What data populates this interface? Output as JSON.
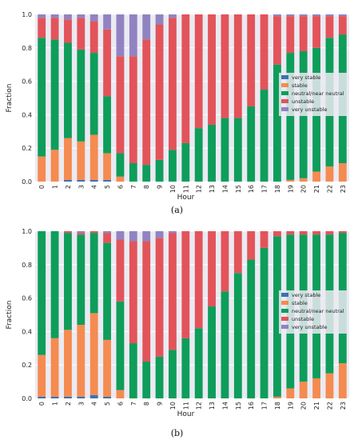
{
  "chart_data": [
    {
      "type": "bar",
      "stacked": true,
      "panel_label": "(a)",
      "title": "",
      "xlabel": "Hour",
      "ylabel": "Fraction",
      "ylim": [
        0,
        1
      ],
      "yticks": [
        "0.0",
        "0.2",
        "0.4",
        "0.6",
        "0.8",
        "1.0"
      ],
      "grid": true,
      "legend_position": "center-right",
      "categories": [
        "0",
        "1",
        "2",
        "3",
        "4",
        "5",
        "6",
        "7",
        "8",
        "9",
        "10",
        "11",
        "12",
        "13",
        "14",
        "15",
        "16",
        "17",
        "18",
        "19",
        "20",
        "21",
        "22",
        "23"
      ],
      "series": [
        {
          "name": "very stable",
          "color": "#3a72b0",
          "values": [
            0,
            0,
            0.01,
            0.01,
            0.01,
            0.01,
            0,
            0,
            0,
            0,
            0,
            0,
            0,
            0,
            0,
            0,
            0,
            0,
            0,
            0,
            0,
            0,
            0,
            0
          ]
        },
        {
          "name": "stable",
          "color": "#f58b50",
          "values": [
            0.15,
            0.19,
            0.25,
            0.23,
            0.27,
            0.16,
            0.03,
            0,
            0,
            0,
            0,
            0,
            0,
            0,
            0,
            0,
            0,
            0,
            0,
            0.01,
            0.02,
            0.06,
            0.09,
            0.11
          ]
        },
        {
          "name": "neutral/near neutral",
          "color": "#0e9d5a",
          "values": [
            0.71,
            0.66,
            0.57,
            0.55,
            0.49,
            0.34,
            0.14,
            0.11,
            0.1,
            0.13,
            0.19,
            0.23,
            0.32,
            0.34,
            0.38,
            0.38,
            0.45,
            0.55,
            0.7,
            0.76,
            0.76,
            0.74,
            0.77,
            0.77
          ]
        },
        {
          "name": "unstable",
          "color": "#e2545a",
          "values": [
            0.12,
            0.13,
            0.14,
            0.19,
            0.19,
            0.4,
            0.58,
            0.64,
            0.75,
            0.81,
            0.79,
            0.77,
            0.68,
            0.66,
            0.62,
            0.62,
            0.55,
            0.45,
            0.29,
            0.22,
            0.21,
            0.19,
            0.13,
            0.11
          ]
        },
        {
          "name": "very unstable",
          "color": "#9183c2",
          "values": [
            0.02,
            0.02,
            0.03,
            0.02,
            0.04,
            0.09,
            0.25,
            0.25,
            0.15,
            0.06,
            0.02,
            0,
            0,
            0,
            0,
            0,
            0,
            0,
            0.01,
            0.01,
            0.01,
            0.01,
            0.01,
            0.01
          ]
        }
      ]
    },
    {
      "type": "bar",
      "stacked": true,
      "panel_label": "(b)",
      "title": "",
      "xlabel": "Hour",
      "ylabel": "Fraction",
      "ylim": [
        0,
        1
      ],
      "yticks": [
        "0.0",
        "0.2",
        "0.4",
        "0.6",
        "0.8",
        "1.0"
      ],
      "grid": true,
      "legend_position": "center-right",
      "categories": [
        "0",
        "1",
        "2",
        "3",
        "4",
        "5",
        "6",
        "7",
        "8",
        "9",
        "10",
        "11",
        "12",
        "13",
        "14",
        "15",
        "16",
        "17",
        "18",
        "19",
        "20",
        "21",
        "22",
        "23"
      ],
      "series": [
        {
          "name": "very stable",
          "color": "#3a72b0",
          "values": [
            0.01,
            0.01,
            0.01,
            0.01,
            0.02,
            0.01,
            0,
            0,
            0,
            0,
            0,
            0,
            0,
            0,
            0,
            0,
            0,
            0,
            0,
            0,
            0,
            0,
            0,
            0
          ]
        },
        {
          "name": "stable",
          "color": "#f58b50",
          "values": [
            0.25,
            0.35,
            0.4,
            0.43,
            0.49,
            0.34,
            0.05,
            0,
            0,
            0,
            0,
            0,
            0,
            0,
            0,
            0,
            0,
            0,
            0.01,
            0.06,
            0.1,
            0.12,
            0.15,
            0.21
          ]
        },
        {
          "name": "neutral/near neutral",
          "color": "#0e9d5a",
          "values": [
            0.74,
            0.64,
            0.58,
            0.54,
            0.48,
            0.58,
            0.53,
            0.33,
            0.22,
            0.25,
            0.29,
            0.36,
            0.42,
            0.55,
            0.64,
            0.75,
            0.83,
            0.9,
            0.96,
            0.92,
            0.88,
            0.86,
            0.83,
            0.78
          ]
        },
        {
          "name": "unstable",
          "color": "#e2545a",
          "values": [
            0,
            0,
            0.01,
            0.01,
            0.01,
            0.06,
            0.37,
            0.61,
            0.72,
            0.71,
            0.7,
            0.64,
            0.58,
            0.45,
            0.36,
            0.25,
            0.17,
            0.1,
            0.03,
            0.02,
            0.02,
            0.02,
            0.02,
            0.01
          ]
        },
        {
          "name": "very unstable",
          "color": "#9183c2",
          "values": [
            0,
            0,
            0,
            0.01,
            0,
            0.01,
            0.05,
            0.06,
            0.06,
            0.04,
            0.01,
            0,
            0,
            0,
            0,
            0,
            0,
            0,
            0,
            0,
            0,
            0,
            0,
            0
          ]
        }
      ]
    }
  ]
}
